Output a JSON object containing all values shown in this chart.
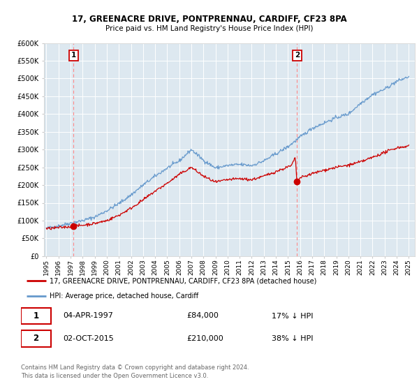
{
  "title": "17, GREENACRE DRIVE, PONTPRENNAU, CARDIFF, CF23 8PA",
  "subtitle": "Price paid vs. HM Land Registry's House Price Index (HPI)",
  "bg_color": "#dde8f0",
  "ylim": [
    0,
    600000
  ],
  "yticks": [
    0,
    50000,
    100000,
    150000,
    200000,
    250000,
    300000,
    350000,
    400000,
    450000,
    500000,
    550000,
    600000
  ],
  "ytick_labels": [
    "£0",
    "£50K",
    "£100K",
    "£150K",
    "£200K",
    "£250K",
    "£300K",
    "£350K",
    "£400K",
    "£450K",
    "£500K",
    "£550K",
    "£600K"
  ],
  "sale1_date": 1997.25,
  "sale1_price": 84000,
  "sale2_date": 2015.75,
  "sale2_price": 210000,
  "red_line_color": "#cc0000",
  "blue_line_color": "#6699cc",
  "dashed_vline_color": "#ff8888",
  "marker_color": "#cc0000",
  "legend1_text": "17, GREENACRE DRIVE, PONTPRENNAU, CARDIFF, CF23 8PA (detached house)",
  "legend2_text": "HPI: Average price, detached house, Cardiff",
  "table_row1": [
    "1",
    "04-APR-1997",
    "£84,000",
    "17% ↓ HPI"
  ],
  "table_row2": [
    "2",
    "02-OCT-2015",
    "£210,000",
    "38% ↓ HPI"
  ],
  "footnote": "Contains HM Land Registry data © Crown copyright and database right 2024.\nThis data is licensed under the Open Government Licence v3.0.",
  "xmin": 1994.8,
  "xmax": 2025.5,
  "hpi_x": [
    1995,
    1996,
    1997,
    1998,
    1999,
    2000,
    2001,
    2002,
    2003,
    2004,
    2005,
    2006,
    2007,
    2008,
    2009,
    2010,
    2011,
    2012,
    2013,
    2014,
    2015,
    2016,
    2017,
    2018,
    2019,
    2020,
    2021,
    2022,
    2023,
    2024,
    2025
  ],
  "hpi_y": [
    78000,
    85000,
    93000,
    100000,
    110000,
    128000,
    148000,
    172000,
    200000,
    225000,
    248000,
    268000,
    300000,
    270000,
    248000,
    255000,
    258000,
    255000,
    268000,
    288000,
    308000,
    335000,
    360000,
    375000,
    390000,
    400000,
    430000,
    455000,
    470000,
    492000,
    505000
  ],
  "red_x": [
    1995,
    1996,
    1997.25,
    1998,
    1999,
    2000,
    2001,
    2002,
    2003,
    2004,
    2005,
    2006,
    2007,
    2008,
    2009,
    2010,
    2011,
    2012,
    2013,
    2014,
    2015.3,
    2015.6,
    2015.75,
    2016,
    2017,
    2018,
    2019,
    2020,
    2021,
    2022,
    2023,
    2024,
    2025
  ],
  "red_y": [
    77000,
    80000,
    84000,
    87000,
    92000,
    100000,
    115000,
    135000,
    158000,
    183000,
    205000,
    230000,
    250000,
    225000,
    208000,
    215000,
    218000,
    215000,
    225000,
    238000,
    255000,
    278000,
    210000,
    220000,
    232000,
    242000,
    250000,
    256000,
    265000,
    278000,
    292000,
    305000,
    310000
  ]
}
